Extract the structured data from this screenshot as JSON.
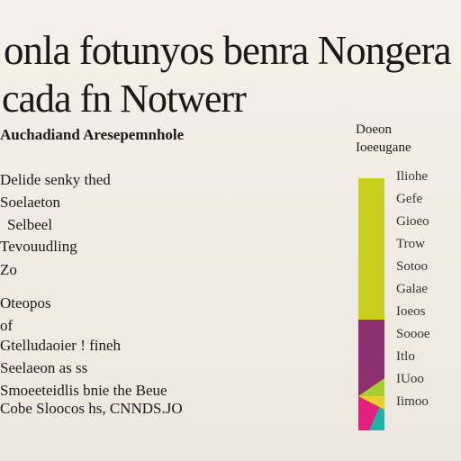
{
  "header": {
    "title": [
      "onla fotunyos benra Nongera",
      "cada fn Notwerr"
    ],
    "subtitle": "Auchadiand Aresepemnhole"
  },
  "list": [
    "Delide senky thed",
    "Soelaeton",
    "Selbeel",
    "Tevouudling",
    "Zo",
    "Oteopos",
    "of",
    "Gtelludaoier ! fineh",
    "Seelaeon as ss",
    "Smoeeteidlis bnie the Beue",
    "Cobe Sloocos hs, CNNDS.JO"
  ],
  "side": {
    "heading": [
      "Doeon",
      "Ioeeugane"
    ],
    "labels": [
      "Iliohe",
      "Gefe",
      "Gioeo",
      "Trow",
      "Sotoo",
      "Galae",
      "Ioeos",
      "Soooe",
      "Itlo",
      "IUoo",
      "Iimoo"
    ]
  }
}
